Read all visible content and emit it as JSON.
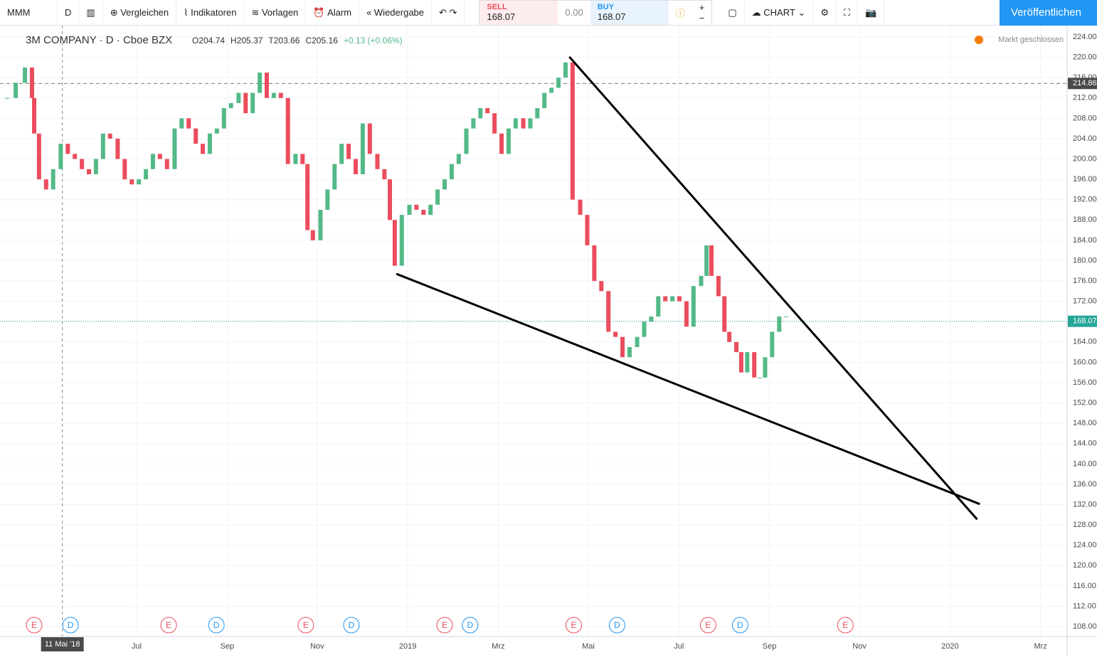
{
  "toolbar": {
    "symbol": "MMM",
    "interval": "D",
    "compare": "Vergleichen",
    "indicators": "Indikatoren",
    "templates": "Vorlagen",
    "alert": "Alarm",
    "replay": "Wiedergabe",
    "sell": {
      "label": "SELL",
      "price": "168.07"
    },
    "spread": "0.00",
    "buy": {
      "label": "BUY",
      "price": "168.07"
    },
    "chart": "CHART",
    "publish": "Veröffentlichen"
  },
  "chart_data": {
    "type": "candlestick",
    "title": "3M COMPANY · D · Cboe BZX",
    "legend": [
      "O204.74",
      "H205.37",
      "T203.66",
      "C205.16",
      "+0.13 (+0.06%)"
    ],
    "status": "Markt geschlossen",
    "up_color": "#53b987",
    "down_color": "#eb4d5c",
    "x": [
      2018.261,
      2018.277,
      2018.294,
      2018.307,
      2018.311,
      2018.32,
      2018.333,
      2018.346,
      2018.36,
      2018.373,
      2018.386,
      2018.399,
      2018.412,
      2018.425,
      2018.438,
      2018.451,
      2018.465,
      2018.478,
      2018.491,
      2018.504,
      2018.517,
      2018.53,
      2018.543,
      2018.556,
      2018.57,
      2018.583,
      2018.596,
      2018.609,
      2018.622,
      2018.635,
      2018.648,
      2018.661,
      2018.674,
      2018.688,
      2018.701,
      2018.714,
      2018.727,
      2018.74,
      2018.753,
      2018.766,
      2018.779,
      2018.793,
      2018.806,
      2018.815,
      2018.825,
      2018.839,
      2018.852,
      2018.865,
      2018.878,
      2018.891,
      2018.904,
      2018.917,
      2018.93,
      2018.944,
      2018.957,
      2018.967,
      2018.976,
      2018.989,
      2019.003,
      2019.016,
      2019.029,
      2019.042,
      2019.055,
      2019.068,
      2019.081,
      2019.094,
      2019.108,
      2019.121,
      2019.134,
      2019.147,
      2019.16,
      2019.173,
      2019.186,
      2019.199,
      2019.213,
      2019.226,
      2019.239,
      2019.252,
      2019.265,
      2019.278,
      2019.291,
      2019.304,
      2019.318,
      2019.331,
      2019.344,
      2019.357,
      2019.37,
      2019.383,
      2019.396,
      2019.409,
      2019.423,
      2019.436,
      2019.449,
      2019.462,
      2019.475,
      2019.488,
      2019.501,
      2019.514,
      2019.527,
      2019.541,
      2019.551,
      2019.56,
      2019.573,
      2019.584,
      2019.593,
      2019.606,
      2019.615,
      2019.626,
      2019.639,
      2019.649,
      2019.659,
      2019.672,
      2019.685,
      2019.698
    ],
    "values": [
      212,
      215,
      218,
      212,
      205,
      196,
      194,
      198,
      203,
      201,
      200,
      198,
      197,
      200,
      205,
      204,
      200,
      196,
      195,
      196,
      198,
      201,
      200,
      198,
      206,
      208,
      206,
      203,
      201,
      205,
      206,
      210,
      211,
      213,
      209,
      213,
      217,
      212,
      213,
      212,
      199,
      201,
      199,
      186,
      184,
      190,
      194,
      199,
      203,
      200,
      197,
      207,
      201,
      198,
      196,
      188,
      179,
      189,
      191,
      190,
      189,
      191,
      194,
      196,
      199,
      201,
      206,
      208,
      210,
      209,
      205,
      201,
      206,
      208,
      206,
      208,
      210,
      213,
      214,
      216,
      219,
      192,
      189,
      183,
      176,
      174,
      166,
      165,
      161,
      163,
      165,
      168,
      169,
      173,
      172,
      173,
      172,
      167,
      175,
      177,
      183,
      177,
      173,
      166,
      164,
      162,
      158,
      162,
      157,
      157,
      161,
      166,
      169,
      169
    ],
    "xlim": [
      2018.248,
      2020.216
    ],
    "ylim": [
      106.05,
      226.24
    ],
    "xticks": [
      {
        "value": 2018.5,
        "label": "Jul"
      },
      {
        "value": 2018.667,
        "label": "Sep"
      },
      {
        "value": 2018.833,
        "label": "Nov"
      },
      {
        "value": 2019,
        "label": "2019"
      },
      {
        "value": 2019.167,
        "label": "Mrz"
      },
      {
        "value": 2019.333,
        "label": "Mai"
      },
      {
        "value": 2019.5,
        "label": "Jul"
      },
      {
        "value": 2019.667,
        "label": "Sep"
      },
      {
        "value": 2019.833,
        "label": "Nov"
      },
      {
        "value": 2020,
        "label": "2020"
      },
      {
        "value": 2020.167,
        "label": "Mrz"
      }
    ],
    "yticks": [
      {
        "value": 108,
        "label": "108.00"
      },
      {
        "value": 112,
        "label": "112.00"
      },
      {
        "value": 116,
        "label": "116.00"
      },
      {
        "value": 120,
        "label": "120.00"
      },
      {
        "value": 124,
        "label": "124.00"
      },
      {
        "value": 128,
        "label": "128.00"
      },
      {
        "value": 132,
        "label": "132.00"
      },
      {
        "value": 136,
        "label": "136.00"
      },
      {
        "value": 140,
        "label": "140.00"
      },
      {
        "value": 144,
        "label": "144.00"
      },
      {
        "value": 148,
        "label": "148.00"
      },
      {
        "value": 152,
        "label": "152.00"
      },
      {
        "value": 156,
        "label": "156.00"
      },
      {
        "value": 160,
        "label": "160.00"
      },
      {
        "value": 164,
        "label": "164.00"
      },
      {
        "value": 168,
        "label": "168.00"
      },
      {
        "value": 172,
        "label": "172.00"
      },
      {
        "value": 176,
        "label": "176.00"
      },
      {
        "value": 180,
        "label": "180.00"
      },
      {
        "value": 184,
        "label": "184.00"
      },
      {
        "value": 188,
        "label": "188.00"
      },
      {
        "value": 192,
        "label": "192.00"
      },
      {
        "value": 196,
        "label": "196.00"
      },
      {
        "value": 200,
        "label": "200.00"
      },
      {
        "value": 204,
        "label": "204.00"
      },
      {
        "value": 208,
        "label": "208.00"
      },
      {
        "value": 212,
        "label": "212.00"
      },
      {
        "value": 216,
        "label": "216.00"
      },
      {
        "value": 220,
        "label": "220.00"
      },
      {
        "value": 224,
        "label": "224.00"
      }
    ],
    "grid": true,
    "price_lines": [
      {
        "value": 214.86,
        "label": "214.86",
        "color": "#777777",
        "style": "dashed",
        "label_bg": "#4a4a4a"
      },
      {
        "value": 168.07,
        "label": "168.07",
        "color": "#26a69a",
        "style": "dotted",
        "label_bg": "#26a69a"
      }
    ],
    "trend_lines": [
      {
        "x": [
          2019.298,
          2020.05
        ],
        "values": [
          220.1,
          129.1
        ]
      },
      {
        "x": [
          2018.979,
          2020.055
        ],
        "values": [
          177.4,
          132.1
        ]
      }
    ],
    "crosshair": {
      "x": 2018.363,
      "label": "11 Mai '18"
    },
    "events": [
      {
        "label": "E",
        "x": 2018.311
      },
      {
        "label": "D",
        "x": 2018.378
      },
      {
        "label": "E",
        "x": 2018.559
      },
      {
        "label": "D",
        "x": 2018.647
      },
      {
        "label": "E",
        "x": 2018.812
      },
      {
        "label": "D",
        "x": 2018.896
      },
      {
        "label": "E",
        "x": 2019.068
      },
      {
        "label": "D",
        "x": 2019.115
      },
      {
        "label": "E",
        "x": 2019.306
      },
      {
        "label": "D",
        "x": 2019.386
      },
      {
        "label": "E",
        "x": 2019.554
      },
      {
        "label": "D",
        "x": 2019.613
      },
      {
        "label": "E",
        "x": 2019.807
      }
    ]
  }
}
